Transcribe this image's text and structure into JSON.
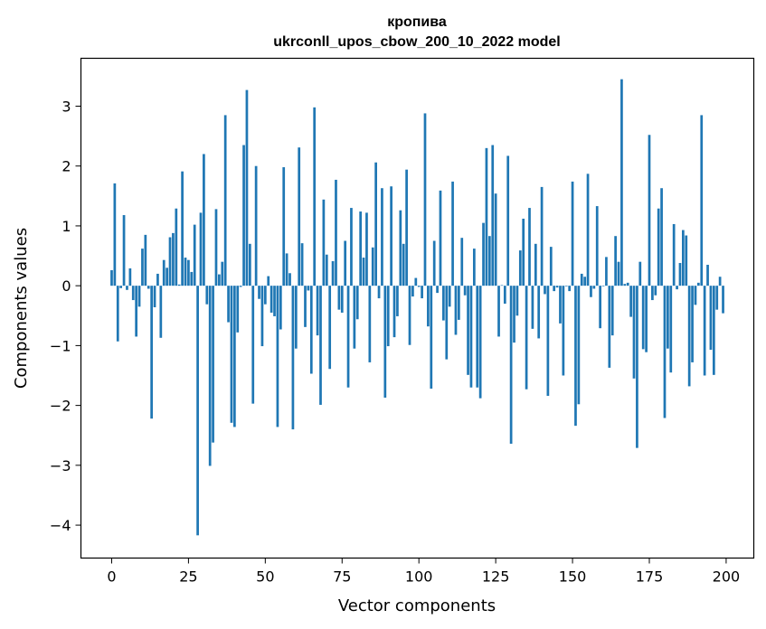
{
  "chart_data": {
    "type": "bar",
    "title": "кропива",
    "subtitle": "ukrconll_upos_cbow_200_10_2022 model",
    "xlabel": "Vector components",
    "ylabel": "Components values",
    "xlim": [
      -10,
      209
    ],
    "ylim": [
      -4.55,
      3.8
    ],
    "xticks": [
      0,
      25,
      50,
      75,
      100,
      125,
      150,
      175,
      200
    ],
    "yticks": [
      -4,
      -3,
      -2,
      -1,
      0,
      1,
      2,
      3
    ],
    "grid": false,
    "legend": "none",
    "bar_color": "#1f77b4",
    "x": [
      0,
      1,
      2,
      3,
      4,
      5,
      6,
      7,
      8,
      9,
      10,
      11,
      12,
      13,
      14,
      15,
      16,
      17,
      18,
      19,
      20,
      21,
      22,
      23,
      24,
      25,
      26,
      27,
      28,
      29,
      30,
      31,
      32,
      33,
      34,
      35,
      36,
      37,
      38,
      39,
      40,
      41,
      42,
      43,
      44,
      45,
      46,
      47,
      48,
      49,
      50,
      51,
      52,
      53,
      54,
      55,
      56,
      57,
      58,
      59,
      60,
      61,
      62,
      63,
      64,
      65,
      66,
      67,
      68,
      69,
      70,
      71,
      72,
      73,
      74,
      75,
      76,
      77,
      78,
      79,
      80,
      81,
      82,
      83,
      84,
      85,
      86,
      87,
      88,
      89,
      90,
      91,
      92,
      93,
      94,
      95,
      96,
      97,
      98,
      99,
      100,
      101,
      102,
      103,
      104,
      105,
      106,
      107,
      108,
      109,
      110,
      111,
      112,
      113,
      114,
      115,
      116,
      117,
      118,
      119,
      120,
      121,
      122,
      123,
      124,
      125,
      126,
      127,
      128,
      129,
      130,
      131,
      132,
      133,
      134,
      135,
      136,
      137,
      138,
      139,
      140,
      141,
      142,
      143,
      144,
      145,
      146,
      147,
      148,
      149,
      150,
      151,
      152,
      153,
      154,
      155,
      156,
      157,
      158,
      159,
      160,
      161,
      162,
      163,
      164,
      165,
      166,
      167,
      168,
      169,
      170,
      171,
      172,
      173,
      174,
      175,
      176,
      177,
      178,
      179,
      180,
      181,
      182,
      183,
      184,
      185,
      186,
      187,
      188,
      189,
      190,
      191,
      192,
      193,
      194,
      195,
      196,
      197,
      198,
      199
    ],
    "values": [
      0.26,
      1.71,
      -0.93,
      -0.04,
      1.18,
      -0.07,
      0.29,
      -0.24,
      -0.85,
      -0.35,
      0.62,
      0.85,
      -0.05,
      -2.22,
      -0.36,
      0.2,
      -0.87,
      0.43,
      0.3,
      0.81,
      0.88,
      1.29,
      0.02,
      1.91,
      0.47,
      0.43,
      0.23,
      1.02,
      -4.17,
      1.22,
      2.2,
      -0.31,
      -3.01,
      -2.62,
      1.28,
      0.19,
      0.4,
      2.85,
      -0.61,
      -2.29,
      -2.36,
      -0.78,
      -0.02,
      2.35,
      3.27,
      0.7,
      -1.97,
      2.0,
      -0.22,
      -1.01,
      -0.31,
      0.16,
      -0.45,
      -0.51,
      -2.36,
      -0.73,
      1.98,
      0.54,
      0.21,
      -2.4,
      -1.05,
      2.31,
      0.71,
      -0.69,
      -0.08,
      -1.47,
      2.98,
      -0.83,
      -1.99,
      1.44,
      0.52,
      -1.39,
      0.41,
      1.77,
      -0.4,
      -0.45,
      0.75,
      -1.7,
      1.3,
      -1.05,
      -0.56,
      1.24,
      0.47,
      1.22,
      -1.28,
      0.64,
      2.06,
      -0.21,
      1.63,
      -1.87,
      -1.01,
      1.66,
      -0.86,
      -0.51,
      1.26,
      0.7,
      1.94,
      -0.99,
      -0.18,
      0.13,
      -0.02,
      -0.21,
      2.88,
      -0.68,
      -1.72,
      0.75,
      -0.12,
      1.59,
      -0.58,
      -1.23,
      -0.35,
      1.74,
      -0.82,
      -0.57,
      0.8,
      -0.16,
      -1.49,
      -1.7,
      0.62,
      -1.7,
      -1.88,
      1.05,
      2.3,
      0.83,
      2.35,
      1.54,
      -0.85,
      0.01,
      -0.3,
      2.17,
      -2.64,
      -0.95,
      -0.5,
      0.59,
      1.12,
      -1.73,
      1.3,
      -0.72,
      0.7,
      -0.88,
      1.65,
      -0.14,
      -1.84,
      0.65,
      -0.09,
      -0.03,
      -0.63,
      -1.5,
      -0.01,
      -0.09,
      1.74,
      -2.34,
      -1.98,
      0.2,
      0.15,
      1.87,
      -0.19,
      -0.05,
      1.33,
      -0.71,
      -0.01,
      0.48,
      -1.37,
      -0.83,
      0.83,
      0.4,
      3.45,
      0.03,
      0.05,
      -0.52,
      -1.55,
      -2.71,
      0.4,
      -1.06,
      -1.11,
      2.52,
      -0.24,
      -0.16,
      1.29,
      1.63,
      -2.21,
      -1.05,
      -1.45,
      1.03,
      -0.06,
      0.38,
      0.93,
      0.84,
      -1.68,
      -1.28,
      -0.32,
      0.05,
      2.85,
      -1.5,
      0.35,
      -1.07,
      -1.49,
      -0.4,
      0.15,
      -0.46
    ]
  }
}
